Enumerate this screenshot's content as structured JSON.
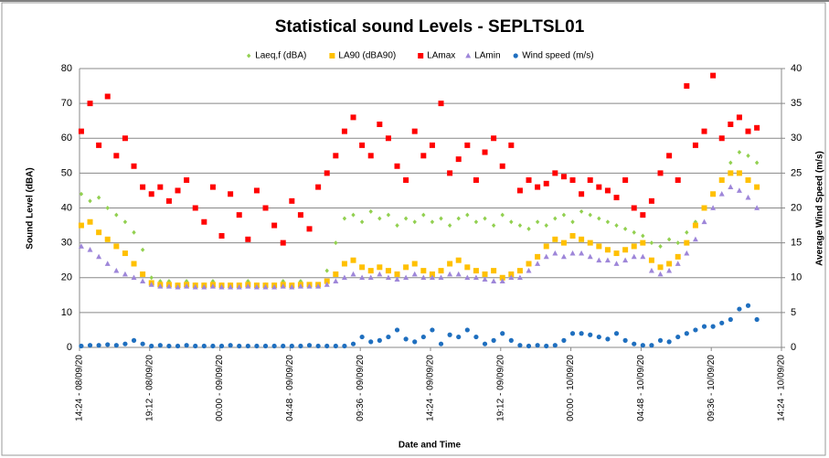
{
  "chart_data": {
    "type": "scatter",
    "title": "Statistical sound Levels - SEPLTSL01",
    "xlabel": "Date and Time",
    "ylabel": "Sound Level (dBA)",
    "y2label": "Average Wind Speed (m/s)",
    "xlim": [
      44082.6,
      44084.6
    ],
    "xticks": [
      {
        "value": 44082.6,
        "label": "14:24 - 08/09/20"
      },
      {
        "value": 44082.8,
        "label": "19:12 - 08/09/20"
      },
      {
        "value": 44083.0,
        "label": "00:00 - 09/09/20"
      },
      {
        "value": 44083.2,
        "label": "04:48 - 09/09/20"
      },
      {
        "value": 44083.4,
        "label": "09:36 - 09/09/20"
      },
      {
        "value": 44083.6,
        "label": "14:24 - 09/09/20"
      },
      {
        "value": 44083.8,
        "label": "19:12 - 09/09/20"
      },
      {
        "value": 44084.0,
        "label": "00:00 - 10/09/20"
      },
      {
        "value": 44084.2,
        "label": "04:48 - 10/09/20"
      },
      {
        "value": 44084.4,
        "label": "09:36 - 10/09/20"
      },
      {
        "value": 44084.6,
        "label": "14:24 - 10/09/20"
      }
    ],
    "ylim": [
      0,
      80
    ],
    "yticks": [
      0,
      10,
      20,
      30,
      40,
      50,
      60,
      70,
      80
    ],
    "y2lim": [
      0,
      40
    ],
    "y2ticks": [
      0,
      5,
      10,
      15,
      20,
      25,
      30,
      35,
      40
    ],
    "grid": true,
    "legend": "top",
    "x": [
      44082.605,
      44082.63,
      44082.655,
      44082.68,
      44082.705,
      44082.73,
      44082.755,
      44082.78,
      44082.805,
      44082.83,
      44082.855,
      44082.88,
      44082.905,
      44082.93,
      44082.955,
      44082.98,
      44083.005,
      44083.03,
      44083.055,
      44083.08,
      44083.105,
      44083.13,
      44083.155,
      44083.18,
      44083.205,
      44083.23,
      44083.255,
      44083.28,
      44083.305,
      44083.33,
      44083.355,
      44083.38,
      44083.405,
      44083.43,
      44083.455,
      44083.48,
      44083.505,
      44083.53,
      44083.555,
      44083.58,
      44083.605,
      44083.63,
      44083.655,
      44083.68,
      44083.705,
      44083.73,
      44083.755,
      44083.78,
      44083.805,
      44083.83,
      44083.855,
      44083.88,
      44083.905,
      44083.93,
      44083.955,
      44083.98,
      44084.005,
      44084.03,
      44084.055,
      44084.08,
      44084.105,
      44084.13,
      44084.155,
      44084.18,
      44084.205,
      44084.23,
      44084.255,
      44084.28,
      44084.305,
      44084.33,
      44084.355,
      44084.38,
      44084.405,
      44084.43,
      44084.455,
      44084.48,
      44084.505,
      44084.53
    ],
    "series": [
      {
        "name": "Laeq,f (dBA)",
        "color": "#92d050",
        "marker": "diamond",
        "values": [
          44,
          42,
          43,
          40,
          38,
          36,
          33,
          28,
          20,
          19,
          19,
          18,
          19,
          18,
          18,
          19,
          18,
          18,
          18,
          19,
          18,
          18,
          18,
          19,
          18,
          19,
          18,
          18,
          22,
          30,
          37,
          38,
          36,
          39,
          37,
          38,
          35,
          37,
          36,
          38,
          36,
          37,
          35,
          37,
          38,
          36,
          37,
          35,
          38,
          36,
          35,
          34,
          36,
          35,
          37,
          38,
          36,
          39,
          38,
          37,
          36,
          35,
          34,
          33,
          32,
          30,
          29,
          31,
          30,
          33,
          36,
          40,
          44,
          48,
          53,
          56,
          55,
          53
        ]
      },
      {
        "name": "LA90  (dBA90)",
        "color": "#ffc000",
        "marker": "square",
        "values": [
          35,
          36,
          33,
          31,
          29,
          27,
          24,
          21,
          18.5,
          18,
          18,
          17.8,
          18,
          17.8,
          17.8,
          18,
          17.8,
          17.8,
          17.8,
          18,
          17.8,
          17.8,
          17.8,
          18,
          17.8,
          18,
          18,
          18,
          19,
          21,
          24,
          25,
          23,
          22,
          23,
          22,
          21,
          23,
          24,
          22,
          21,
          22,
          24,
          25,
          23,
          22,
          21,
          22,
          20,
          21,
          22,
          24,
          26,
          29,
          31,
          30,
          32,
          31,
          30,
          29,
          28,
          27,
          28,
          29,
          30,
          25,
          23,
          24,
          26,
          30,
          35,
          40,
          44,
          48,
          50,
          50,
          48,
          46
        ]
      },
      {
        "name": "LAmax",
        "color": "#ff0000",
        "marker": "square",
        "values": [
          62,
          70,
          58,
          72,
          55,
          60,
          52,
          46,
          44,
          46,
          42,
          45,
          48,
          40,
          36,
          46,
          32,
          44,
          38,
          31,
          45,
          40,
          35,
          30,
          42,
          38,
          34,
          46,
          50,
          55,
          62,
          66,
          58,
          55,
          64,
          60,
          52,
          48,
          62,
          55,
          58,
          70,
          50,
          54,
          58,
          48,
          56,
          60,
          52,
          58,
          45,
          48,
          46,
          47,
          50,
          49,
          48,
          44,
          48,
          46,
          45,
          43,
          48,
          40,
          38,
          42,
          50,
          55,
          48,
          75,
          58,
          62,
          78,
          60,
          64,
          66,
          62,
          63
        ]
      },
      {
        "name": "LAmin",
        "color": "#9e86d9",
        "marker": "triangle",
        "values": [
          29,
          28,
          26,
          24,
          22,
          21,
          20,
          19,
          18,
          17.5,
          17.5,
          17.3,
          17.5,
          17.3,
          17.3,
          17.5,
          17.3,
          17.3,
          17.3,
          17.5,
          17.3,
          17.3,
          17.3,
          17.5,
          17.3,
          17.5,
          17.5,
          17.5,
          18,
          19,
          20,
          21,
          20,
          20,
          21,
          20,
          19.5,
          20,
          21,
          20,
          20,
          20,
          21,
          21,
          20,
          20,
          19.5,
          19,
          19,
          20,
          20,
          22,
          24,
          26,
          27,
          26,
          27,
          27,
          26,
          25,
          25,
          24,
          25,
          26,
          26,
          22,
          21,
          22,
          24,
          27,
          31,
          36,
          40,
          44,
          46,
          45,
          43,
          40
        ]
      },
      {
        "name": "Wind speed (m/s)",
        "color": "#1f6fbf",
        "marker": "circle",
        "axis": "y2",
        "values": [
          0.2,
          0.3,
          0.3,
          0.4,
          0.3,
          0.5,
          1,
          0.5,
          0.2,
          0.3,
          0.2,
          0.2,
          0.3,
          0.2,
          0.2,
          0.2,
          0.2,
          0.3,
          0.2,
          0.2,
          0.2,
          0.2,
          0.2,
          0.2,
          0.2,
          0.2,
          0.3,
          0.2,
          0.2,
          0.2,
          0.2,
          0.5,
          1.5,
          0.8,
          1,
          1.5,
          2.5,
          1.2,
          0.8,
          1.5,
          2.5,
          0.5,
          1.8,
          1.5,
          2.5,
          1.5,
          0.5,
          1,
          2,
          1,
          0.3,
          0.2,
          0.3,
          0.2,
          0.3,
          1,
          2,
          2,
          1.8,
          1.5,
          1.2,
          2,
          1,
          0.5,
          0.3,
          0.3,
          1,
          0.8,
          1.5,
          2,
          2.5,
          3,
          3,
          3.5,
          4,
          5.5,
          6,
          4
        ]
      }
    ]
  }
}
